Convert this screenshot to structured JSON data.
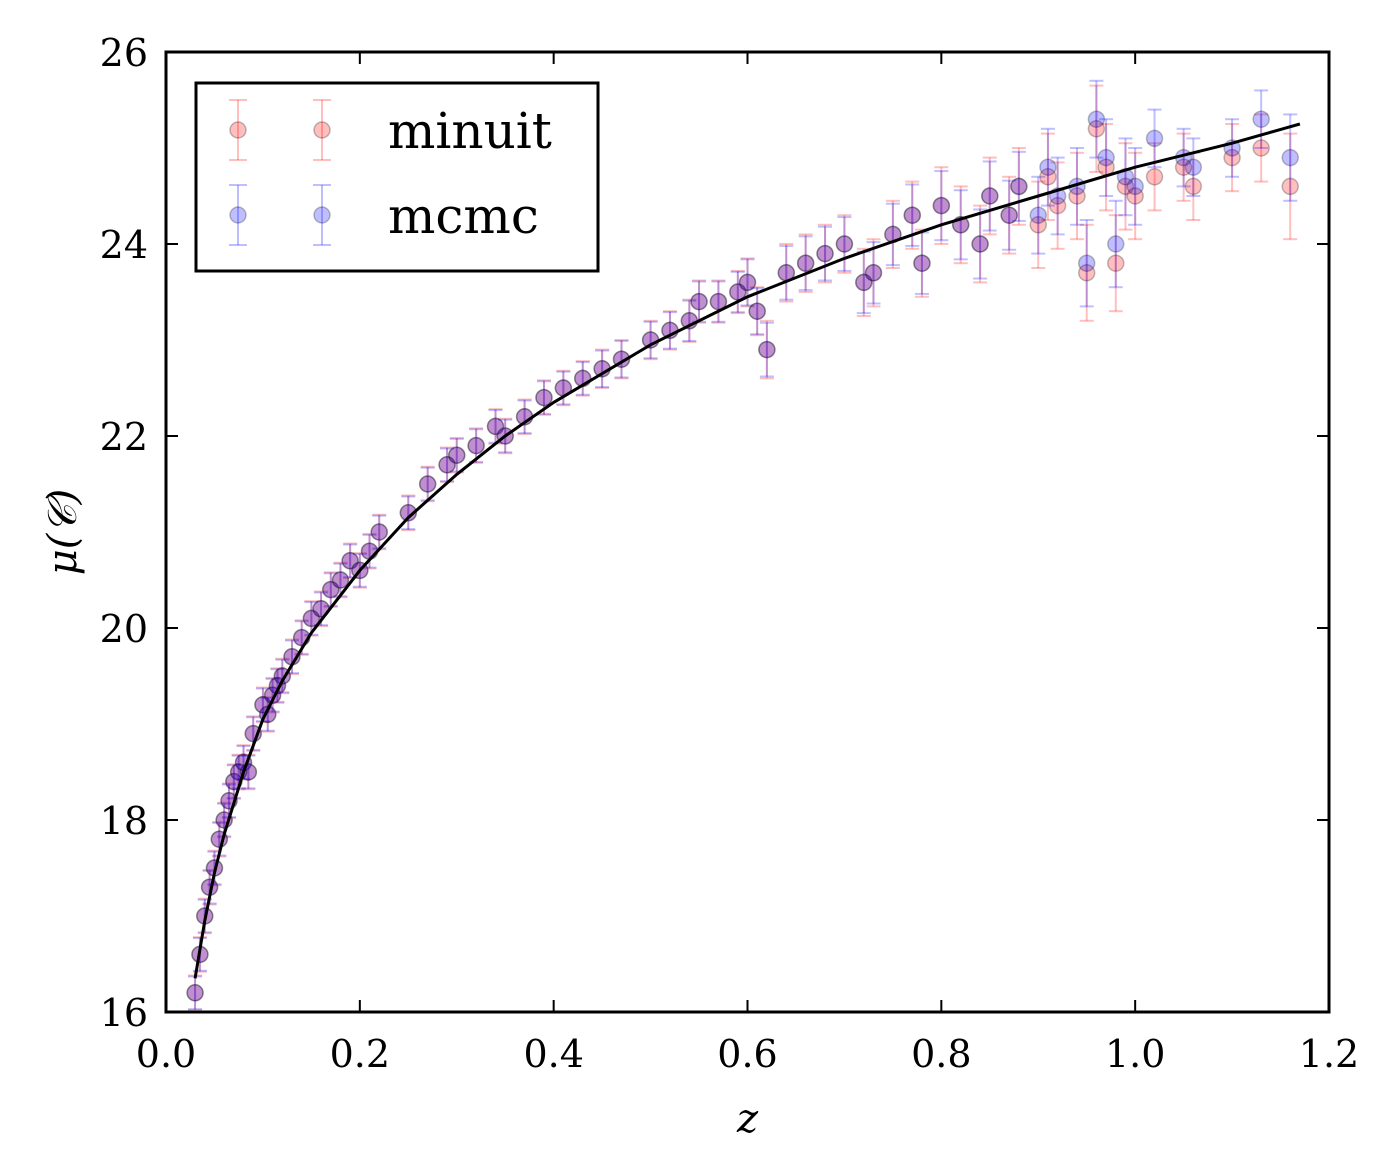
{
  "chart_data": {
    "type": "scatter",
    "title": "",
    "xlabel": "z",
    "ylabel": "μ(𝒞)",
    "xlim": [
      0.0,
      1.2
    ],
    "ylim": [
      16,
      26
    ],
    "xticks": [
      "0.0",
      "0.2",
      "0.4",
      "0.6",
      "0.8",
      "1.0",
      "1.2"
    ],
    "yticks": [
      "16",
      "18",
      "20",
      "22",
      "24",
      "26"
    ],
    "grid": false,
    "legend_position": "top-left",
    "colors": {
      "minuit": "#ff0000",
      "mcmc": "#0000ff",
      "fit": "#000000"
    },
    "series": [
      {
        "name": "minuit",
        "style": "errorbar",
        "color": "#ff0000",
        "x": [
          0.03,
          0.035,
          0.04,
          0.045,
          0.05,
          0.055,
          0.06,
          0.065,
          0.07,
          0.075,
          0.08,
          0.085,
          0.09,
          0.1,
          0.105,
          0.11,
          0.115,
          0.12,
          0.13,
          0.14,
          0.15,
          0.16,
          0.17,
          0.18,
          0.19,
          0.2,
          0.21,
          0.22,
          0.25,
          0.27,
          0.29,
          0.3,
          0.32,
          0.34,
          0.35,
          0.37,
          0.39,
          0.41,
          0.43,
          0.45,
          0.47,
          0.5,
          0.52,
          0.54,
          0.55,
          0.57,
          0.59,
          0.6,
          0.61,
          0.62,
          0.64,
          0.66,
          0.68,
          0.7,
          0.72,
          0.73,
          0.75,
          0.77,
          0.78,
          0.8,
          0.82,
          0.84,
          0.85,
          0.87,
          0.88,
          0.9,
          0.91,
          0.92,
          0.94,
          0.95,
          0.96,
          0.97,
          0.98,
          0.99,
          1.0,
          1.02,
          1.05,
          1.06,
          1.1,
          1.13,
          1.16
        ],
        "y": [
          16.2,
          16.6,
          17.0,
          17.3,
          17.5,
          17.8,
          18.0,
          18.2,
          18.4,
          18.5,
          18.6,
          18.5,
          18.9,
          19.2,
          19.1,
          19.3,
          19.4,
          19.5,
          19.7,
          19.9,
          20.1,
          20.2,
          20.4,
          20.5,
          20.7,
          20.6,
          20.8,
          21.0,
          21.2,
          21.5,
          21.7,
          21.8,
          21.9,
          22.1,
          22.0,
          22.2,
          22.4,
          22.5,
          22.6,
          22.7,
          22.8,
          23.0,
          23.1,
          23.2,
          23.4,
          23.4,
          23.5,
          23.6,
          23.3,
          22.9,
          23.7,
          23.8,
          23.9,
          24.0,
          23.6,
          23.7,
          24.1,
          24.3,
          23.8,
          24.4,
          24.2,
          24.0,
          24.5,
          24.3,
          24.6,
          24.2,
          24.7,
          24.4,
          24.5,
          23.7,
          25.2,
          24.8,
          23.8,
          24.6,
          24.5,
          24.7,
          24.8,
          24.6,
          24.9,
          25.0,
          24.6
        ],
        "yerr": [
          0.18,
          0.18,
          0.18,
          0.18,
          0.18,
          0.18,
          0.18,
          0.18,
          0.18,
          0.18,
          0.18,
          0.18,
          0.18,
          0.18,
          0.18,
          0.18,
          0.18,
          0.18,
          0.18,
          0.18,
          0.18,
          0.18,
          0.18,
          0.18,
          0.18,
          0.18,
          0.18,
          0.18,
          0.18,
          0.18,
          0.18,
          0.18,
          0.18,
          0.18,
          0.18,
          0.18,
          0.18,
          0.18,
          0.18,
          0.2,
          0.2,
          0.2,
          0.2,
          0.22,
          0.22,
          0.22,
          0.22,
          0.25,
          0.25,
          0.3,
          0.3,
          0.3,
          0.3,
          0.3,
          0.35,
          0.35,
          0.35,
          0.35,
          0.35,
          0.4,
          0.4,
          0.4,
          0.4,
          0.4,
          0.4,
          0.45,
          0.45,
          0.45,
          0.45,
          0.5,
          0.45,
          0.45,
          0.5,
          0.45,
          0.45,
          0.35,
          0.35,
          0.35,
          0.35,
          0.35,
          0.55
        ]
      },
      {
        "name": "mcmc",
        "style": "errorbar",
        "color": "#0000ff",
        "x": [
          0.03,
          0.035,
          0.04,
          0.045,
          0.05,
          0.055,
          0.06,
          0.065,
          0.07,
          0.075,
          0.08,
          0.085,
          0.09,
          0.1,
          0.105,
          0.11,
          0.115,
          0.12,
          0.13,
          0.14,
          0.15,
          0.16,
          0.17,
          0.18,
          0.19,
          0.2,
          0.21,
          0.22,
          0.25,
          0.27,
          0.29,
          0.3,
          0.32,
          0.34,
          0.35,
          0.37,
          0.39,
          0.41,
          0.43,
          0.45,
          0.47,
          0.5,
          0.52,
          0.54,
          0.55,
          0.57,
          0.59,
          0.6,
          0.61,
          0.62,
          0.64,
          0.66,
          0.68,
          0.7,
          0.72,
          0.73,
          0.75,
          0.77,
          0.78,
          0.8,
          0.82,
          0.84,
          0.85,
          0.87,
          0.88,
          0.9,
          0.91,
          0.92,
          0.94,
          0.95,
          0.96,
          0.97,
          0.98,
          0.99,
          1.0,
          1.02,
          1.05,
          1.06,
          1.1,
          1.13,
          1.16
        ],
        "y": [
          16.2,
          16.6,
          17.0,
          17.3,
          17.5,
          17.8,
          18.0,
          18.2,
          18.4,
          18.5,
          18.6,
          18.5,
          18.9,
          19.2,
          19.1,
          19.3,
          19.4,
          19.5,
          19.7,
          19.9,
          20.1,
          20.2,
          20.4,
          20.5,
          20.7,
          20.6,
          20.8,
          21.0,
          21.2,
          21.5,
          21.7,
          21.8,
          21.9,
          22.1,
          22.0,
          22.2,
          22.4,
          22.5,
          22.6,
          22.7,
          22.8,
          23.0,
          23.1,
          23.2,
          23.4,
          23.4,
          23.5,
          23.6,
          23.3,
          22.9,
          23.7,
          23.8,
          23.9,
          24.0,
          23.6,
          23.7,
          24.1,
          24.3,
          23.8,
          24.4,
          24.2,
          24.0,
          24.5,
          24.3,
          24.6,
          24.3,
          24.8,
          24.5,
          24.6,
          23.8,
          25.3,
          24.9,
          24.0,
          24.7,
          24.6,
          25.1,
          24.9,
          24.8,
          25.0,
          25.3,
          24.9
        ],
        "yerr": [
          0.17,
          0.17,
          0.17,
          0.17,
          0.17,
          0.17,
          0.17,
          0.17,
          0.17,
          0.17,
          0.17,
          0.17,
          0.17,
          0.17,
          0.17,
          0.17,
          0.17,
          0.17,
          0.17,
          0.17,
          0.17,
          0.17,
          0.17,
          0.17,
          0.17,
          0.17,
          0.17,
          0.17,
          0.17,
          0.17,
          0.17,
          0.17,
          0.17,
          0.17,
          0.17,
          0.17,
          0.17,
          0.17,
          0.17,
          0.19,
          0.19,
          0.19,
          0.19,
          0.21,
          0.21,
          0.21,
          0.21,
          0.24,
          0.24,
          0.28,
          0.28,
          0.28,
          0.28,
          0.28,
          0.32,
          0.32,
          0.32,
          0.32,
          0.32,
          0.36,
          0.36,
          0.36,
          0.36,
          0.36,
          0.36,
          0.4,
          0.4,
          0.4,
          0.4,
          0.45,
          0.4,
          0.4,
          0.45,
          0.4,
          0.4,
          0.3,
          0.3,
          0.3,
          0.3,
          0.3,
          0.45
        ]
      },
      {
        "style": "line",
        "color": "#000000",
        "x": [
          0.03,
          0.04,
          0.05,
          0.06,
          0.08,
          0.1,
          0.12,
          0.15,
          0.2,
          0.25,
          0.3,
          0.35,
          0.4,
          0.5,
          0.6,
          0.7,
          0.8,
          0.9,
          1.0,
          1.1,
          1.17
        ],
        "y": [
          16.35,
          16.95,
          17.45,
          17.85,
          18.5,
          19.05,
          19.45,
          19.95,
          20.6,
          21.15,
          21.6,
          22.0,
          22.35,
          22.95,
          23.45,
          23.85,
          24.2,
          24.5,
          24.8,
          25.05,
          25.25
        ]
      }
    ]
  }
}
